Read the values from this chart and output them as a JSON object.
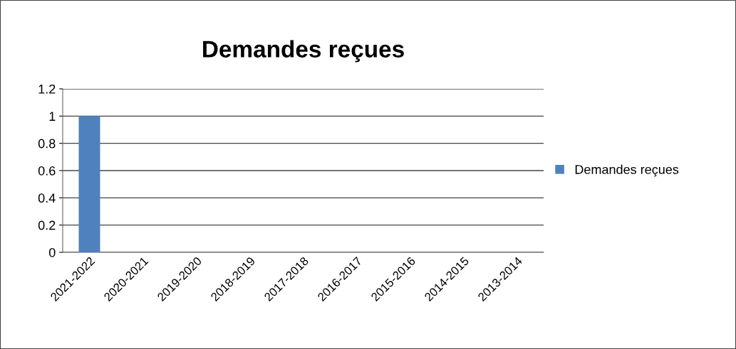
{
  "chart_data": {
    "type": "bar",
    "title": "Demandes reçues",
    "categories": [
      "2021-2022",
      "2020-2021",
      "2019-2020",
      "2018-2019",
      "2017-2018",
      "2016-2017",
      "2015-2016",
      "2014-2015",
      "2013-2014"
    ],
    "series": [
      {
        "name": "Demandes reçues",
        "color": "#4f81bd",
        "values": [
          1,
          0,
          0,
          0,
          0,
          0,
          0,
          0,
          0
        ]
      }
    ],
    "ylim": [
      0,
      1.2
    ],
    "yticks": [
      0,
      0.2,
      0.4,
      0.6,
      0.8,
      1,
      1.2
    ],
    "grid": "y",
    "legend": "right"
  }
}
